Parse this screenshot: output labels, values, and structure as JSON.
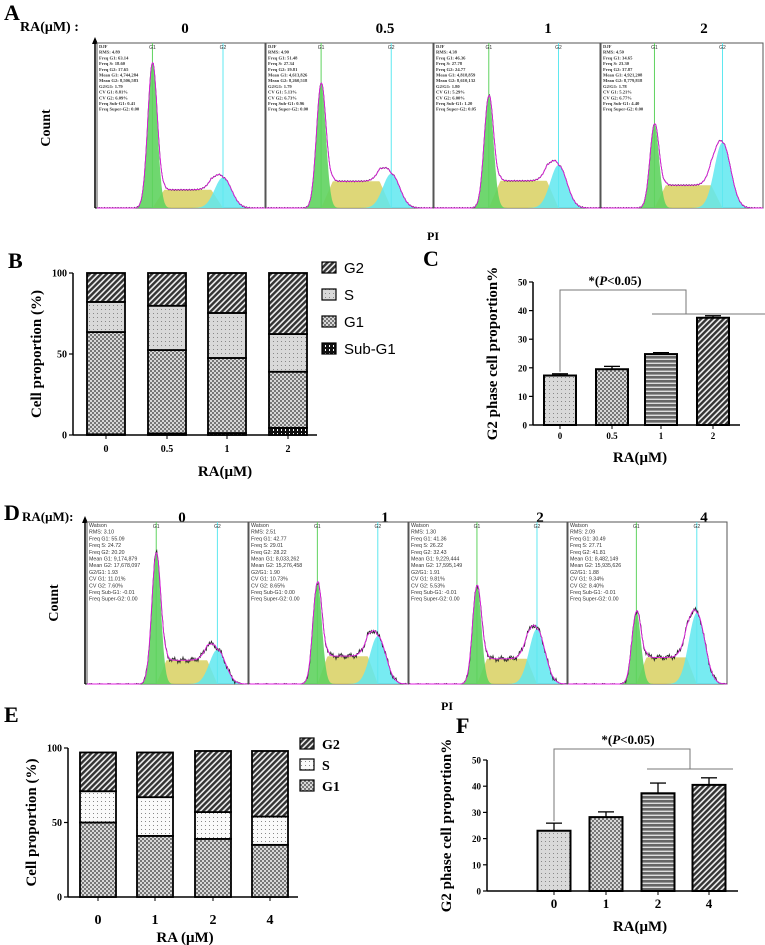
{
  "panels": {
    "A": {
      "letter": "A",
      "ra_label": "RA(μM) :",
      "y_label": "Count",
      "x_label": "PI",
      "peak_labels": [
        "G1",
        "G2"
      ],
      "columns": [
        {
          "dose": "0",
          "stats": [
            "DJF",
            "RMS: 4.89",
            "Freq G1: 63.14",
            "Freq S: 18.60",
            "Freq G2: 17.65",
            "Mean G1: 4,744,284",
            "Mean G2: 8,506,583",
            "G2/G1: 1.79",
            "CV G1: 8.81%",
            "CV G2: 6.09%",
            "Freq Sub-G1: 0.41",
            "Freq Super-G2: 0.00"
          ],
          "freq": {
            "g1": 63.14,
            "s": 18.6,
            "g2": 17.65
          }
        },
        {
          "dose": "0.5",
          "stats": [
            "DJF",
            "RMS: 4.90",
            "Freq G1: 51.48",
            "Freq S: 27.34",
            "Freq G2: 19.81",
            "Mean G1: 4,613,826",
            "Mean G2: 8,260,518",
            "G2/G1: 1.79",
            "CV G1: 5.13%",
            "CV G2: 6.73%",
            "Freq Sub-G1: 0.96",
            "Freq Super-G2: 0.00"
          ],
          "freq": {
            "g1": 51.48,
            "s": 27.34,
            "g2": 19.81
          }
        },
        {
          "dose": "1",
          "stats": [
            "DJF",
            "RMS: 4.38",
            "Freq G1: 46.36",
            "Freq S: 27.78",
            "Freq G2: 24.77",
            "Mean G1: 4,818,859",
            "Mean G2: 8,610,132",
            "G2/G1: 1.80",
            "CV G1: 5.29%",
            "CV G2: 6.00%",
            "Freq Sub-G1: 1.20",
            "Freq Super-G2: 0.05"
          ],
          "freq": {
            "g1": 46.36,
            "s": 27.78,
            "g2": 24.77
          }
        },
        {
          "dose": "2",
          "stats": [
            "DJF",
            "RMS: 4.50",
            "Freq G1: 34.65",
            "Freq S: 23.30",
            "Freq G2: 37.87",
            "Mean G1: 4,921,208",
            "Mean G2: 8,779,818",
            "G2/G1: 1.78",
            "CV G1: 5.21%",
            "CV G2: 6.77%",
            "Freq Sub-G1: 4.40",
            "Freq Super-G2: 0.00"
          ],
          "freq": {
            "g1": 34.65,
            "s": 23.3,
            "g2": 37.87
          }
        }
      ]
    },
    "D": {
      "letter": "D",
      "ra_label": "RA(μM):",
      "y_label": "Count",
      "x_label": "PI",
      "peak_labels": [
        "G1",
        "G2"
      ],
      "columns": [
        {
          "dose": "0",
          "stats": [
            "Watson",
            "RMS: 3.10",
            "Freq G1: 55.09",
            "Freq S: 24.72",
            "Freq G2: 20.20",
            "Mean G1: 9,174,879",
            "Mean G2: 17,678,097",
            "G2/G1: 1.93",
            "CV G1: 11.01%",
            "CV G2: 7.60%",
            "Freq Sub-G1: -0.01",
            "Freq Super-G2: 0.00"
          ],
          "freq": {
            "g1": 55.09,
            "s": 24.72,
            "g2": 20.2
          }
        },
        {
          "dose": "1",
          "stats": [
            "Watson",
            "RMS: 2.51",
            "Freq G1: 42.77",
            "Freq S: 29.01",
            "Freq G2: 28.22",
            "Mean G1: 8,033,262",
            "Mean G2: 15,276,458",
            "G2/G1: 1.90",
            "CV G1: 10.73%",
            "CV G2: 8.65%",
            "Freq Sub-G1: 0.00",
            "Freq Super-G2: 0.00"
          ],
          "freq": {
            "g1": 42.77,
            "s": 29.01,
            "g2": 28.22
          }
        },
        {
          "dose": "2",
          "stats": [
            "Watson",
            "RMS: 1.30",
            "Freq G1: 41.36",
            "Freq S: 26.22",
            "Freq G2: 32.43",
            "Mean G1: 9,229,444",
            "Mean G2: 17,595,149",
            "G2/G1: 1.91",
            "CV G1: 9.81%",
            "CV G2: 5.53%",
            "Freq Sub-G1: -0.01",
            "Freq Super-G2: 0.00"
          ],
          "freq": {
            "g1": 41.36,
            "s": 26.22,
            "g2": 32.43
          }
        },
        {
          "dose": "4",
          "stats": [
            "Watson",
            "RMS: 2.09",
            "Freq G1: 30.49",
            "Freq S: 27.71",
            "Freq G2: 41.81",
            "Mean G1: 8,482,149",
            "Mean G2: 15,935,626",
            "G2/G1: 1.88",
            "CV G1: 9.34%",
            "CV G2: 8.40%",
            "Freq Sub-G1: -0.01",
            "Freq Super-G2: 0.00"
          ],
          "freq": {
            "g1": 30.49,
            "s": 27.71,
            "g2": 41.81
          }
        }
      ]
    }
  },
  "colors": {
    "g1_fill": "#5fd35f",
    "s_fill": "#d8d060",
    "g2_fill": "#5fe8f0",
    "fit_line": "#e020e0",
    "g1_marker": "#5fd35f",
    "g2_marker": "#5fe8f0"
  },
  "chart_data": [
    {
      "panel": "B",
      "type": "bar",
      "stacked": true,
      "categories": [
        "0",
        "0.5",
        "1",
        "2"
      ],
      "xlabel": "RA(μM)",
      "ylabel": "Cell proportion (%)",
      "ylim": [
        0,
        100
      ],
      "yticks": [
        "0",
        "50",
        "100"
      ],
      "legend_position": "right",
      "series": [
        {
          "name": "Sub-G1",
          "values": [
            0.41,
            0.96,
            1.2,
            4.4
          ],
          "pattern": "grid"
        },
        {
          "name": "G1",
          "values": [
            63.14,
            51.48,
            46.36,
            34.65
          ],
          "pattern": "checker"
        },
        {
          "name": "S",
          "values": [
            18.6,
            27.34,
            27.78,
            23.3
          ],
          "pattern": "dots"
        },
        {
          "name": "G2",
          "values": [
            17.85,
            20.22,
            24.66,
            37.65
          ],
          "pattern": "diagonal"
        }
      ],
      "legend_order": [
        "G2",
        "S",
        "G1",
        "Sub-G1"
      ]
    },
    {
      "panel": "C",
      "type": "bar",
      "categories": [
        "0",
        "0.5",
        "1",
        "2"
      ],
      "values": [
        17.3,
        19.5,
        24.8,
        37.5
      ],
      "errors": [
        0.6,
        1.0,
        0.5,
        0.7
      ],
      "patterns": [
        "dots",
        "checker",
        "hlines",
        "diagonal"
      ],
      "xlabel": "RA(μM)",
      "ylabel": "G2 phase cell proportion%",
      "ylim": [
        0,
        50
      ],
      "yticks": [
        "0",
        "10",
        "20",
        "30",
        "40",
        "50"
      ],
      "annotation": {
        "prefix": "*(",
        "p": "P",
        "suffix": "<0.05)"
      }
    },
    {
      "panel": "E",
      "type": "bar",
      "stacked": true,
      "categories": [
        "0",
        "1",
        "2",
        "4"
      ],
      "xlabel": "RA (μM)",
      "ylabel": "Cell proportion (%)",
      "ylim": [
        0,
        100
      ],
      "yticks": [
        "0",
        "50",
        "100"
      ],
      "legend_position": "right",
      "series": [
        {
          "name": "G1",
          "values": [
            50,
            41,
            39,
            35
          ],
          "pattern": "checker"
        },
        {
          "name": "S",
          "values": [
            21,
            26,
            18,
            19
          ],
          "pattern": "dotswhite"
        },
        {
          "name": "G2",
          "values": [
            26,
            30,
            41,
            44
          ],
          "pattern": "diagonal"
        }
      ],
      "legend_order": [
        "G2",
        "S",
        "G1"
      ]
    },
    {
      "panel": "F",
      "type": "bar",
      "categories": [
        "0",
        "1",
        "2",
        "4"
      ],
      "values": [
        23.0,
        28.2,
        37.3,
        40.5
      ],
      "errors": [
        2.9,
        2.0,
        3.9,
        2.7
      ],
      "patterns": [
        "dots",
        "checker",
        "hlines",
        "diagonal"
      ],
      "xlabel": "RA(μM)",
      "ylabel": "G2 phase cell proportion%",
      "ylim": [
        0,
        50
      ],
      "yticks": [
        "0",
        "10",
        "20",
        "30",
        "40",
        "50"
      ],
      "annotation": {
        "prefix": "*(",
        "p": "P",
        "suffix": "<0.05)"
      }
    }
  ],
  "letters": {
    "B": "B",
    "C": "C",
    "E": "E",
    "F": "F"
  }
}
